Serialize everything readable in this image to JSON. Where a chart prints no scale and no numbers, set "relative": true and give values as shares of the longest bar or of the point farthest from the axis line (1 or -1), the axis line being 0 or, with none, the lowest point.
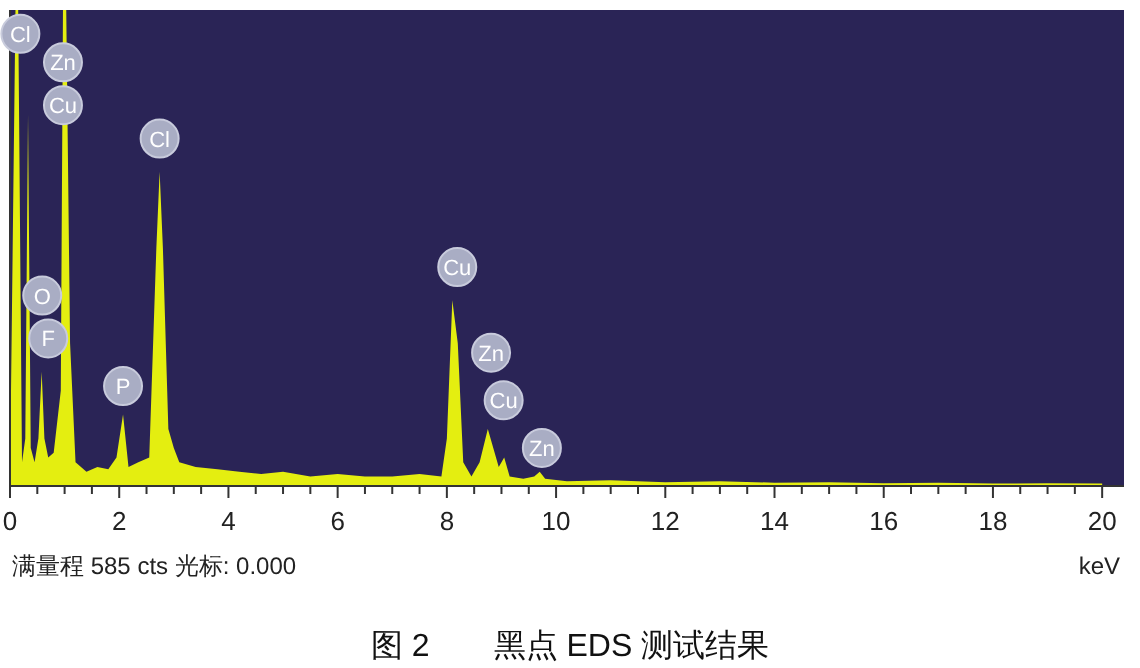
{
  "chart_data": {
    "type": "area",
    "relative": true,
    "color": "#e4ee10",
    "xlabel": "keV",
    "xlim": [
      0,
      20.4
    ],
    "xticks": [
      0,
      {
        "value": 0.5,
        "label": null
      },
      {
        "value": 1,
        "label": null
      },
      {
        "value": 1.5,
        "label": null
      },
      2,
      {
        "value": 2.5,
        "label": null
      },
      {
        "value": 3,
        "label": null
      },
      {
        "value": 3.5,
        "label": null
      },
      4,
      {
        "value": 4.5,
        "label": null
      },
      {
        "value": 5,
        "label": null
      },
      {
        "value": 5.5,
        "label": null
      },
      6,
      {
        "value": 6.5,
        "label": null
      },
      {
        "value": 7,
        "label": null
      },
      {
        "value": 7.5,
        "label": null
      },
      8,
      {
        "value": 8.5,
        "label": null
      },
      {
        "value": 9,
        "label": null
      },
      {
        "value": 9.5,
        "label": null
      },
      10,
      {
        "value": 10.5,
        "label": null
      },
      {
        "value": 11,
        "label": null
      },
      {
        "value": 11.5,
        "label": null
      },
      12,
      {
        "value": 12.5,
        "label": null
      },
      {
        "value": 13,
        "label": null
      },
      {
        "value": 13.5,
        "label": null
      },
      14,
      {
        "value": 14.5,
        "label": null
      },
      {
        "value": 15,
        "label": null
      },
      {
        "value": 15.5,
        "label": null
      },
      16,
      {
        "value": 16.5,
        "label": null
      },
      {
        "value": 17,
        "label": null
      },
      {
        "value": 17.5,
        "label": null
      },
      18,
      {
        "value": 18.5,
        "label": null
      },
      {
        "value": 19,
        "label": null
      },
      {
        "value": 19.5,
        "label": null
      },
      20
    ],
    "x": [
      0,
      0.1,
      0.15,
      0.22,
      0.28,
      0.33,
      0.38,
      0.45,
      0.52,
      0.58,
      0.63,
      0.7,
      0.8,
      0.93,
      0.97,
      1.03,
      1.1,
      1.2,
      1.4,
      1.6,
      1.8,
      1.95,
      2.07,
      2.17,
      2.35,
      2.55,
      2.68,
      2.74,
      2.8,
      2.9,
      3.0,
      3.1,
      3.4,
      3.8,
      4.2,
      4.6,
      5.0,
      5.5,
      6.0,
      6.5,
      7.0,
      7.5,
      7.9,
      8.0,
      8.1,
      8.2,
      8.3,
      8.45,
      8.6,
      8.75,
      8.85,
      8.95,
      9.05,
      9.15,
      9.4,
      9.6,
      9.7,
      9.8,
      10.2,
      11,
      12,
      13,
      14,
      15,
      16,
      17,
      18,
      19,
      20
    ],
    "values": [
      0.02,
      1,
      1,
      0.05,
      0.1,
      0.78,
      0.08,
      0.05,
      0.1,
      0.24,
      0.1,
      0.06,
      0.07,
      0.2,
      1,
      1,
      0.3,
      0.05,
      0.03,
      0.04,
      0.035,
      0.06,
      0.15,
      0.04,
      0.05,
      0.06,
      0.5,
      0.66,
      0.5,
      0.12,
      0.08,
      0.05,
      0.04,
      0.035,
      0.03,
      0.025,
      0.03,
      0.02,
      0.025,
      0.02,
      0.02,
      0.025,
      0.02,
      0.1,
      0.39,
      0.3,
      0.05,
      0.02,
      0.05,
      0.12,
      0.08,
      0.04,
      0.06,
      0.02,
      0.015,
      0.02,
      0.03,
      0.015,
      0.01,
      0.012,
      0.008,
      0.01,
      0.007,
      0.008,
      0.006,
      0.007,
      0.005,
      0.006,
      0.005
    ],
    "annotations": [
      {
        "text": "Cl",
        "x": 0.19,
        "y": 0.95
      },
      {
        "text": "Zn",
        "x": 0.97,
        "y": 0.89
      },
      {
        "text": "Cu",
        "x": 0.97,
        "y": 0.8
      },
      {
        "text": "O",
        "x": 0.59,
        "y": 0.4
      },
      {
        "text": "F",
        "x": 0.7,
        "y": 0.31
      },
      {
        "text": "P",
        "x": 2.07,
        "y": 0.21
      },
      {
        "text": "Cl",
        "x": 2.74,
        "y": 0.73
      },
      {
        "text": "Cu",
        "x": 8.19,
        "y": 0.46
      },
      {
        "text": "Zn",
        "x": 8.81,
        "y": 0.28
      },
      {
        "text": "Cu",
        "x": 9.04,
        "y": 0.18
      },
      {
        "text": "Zn",
        "x": 9.74,
        "y": 0.08
      },
      "满量程 585 cts 光标: 0.000",
      "图 2　　黑点 EDS 测试结果"
    ]
  }
}
